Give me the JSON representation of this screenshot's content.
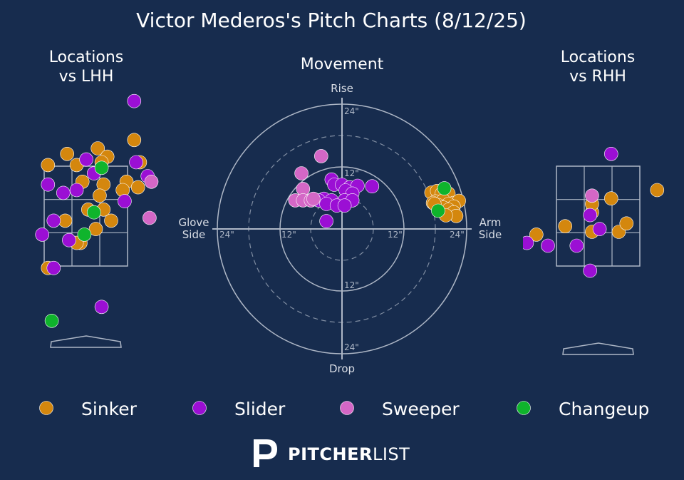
{
  "title": "Victor Mederos's Pitch Charts (8/12/25)",
  "colors": {
    "background": "#172c4e",
    "grid": "#aeb7c6",
    "sinker": "#d4870e",
    "slider": "#9b0fd4",
    "sweeper": "#d467c6",
    "changeup": "#0fb42c"
  },
  "panels": {
    "lhh_title_line1": "Locations",
    "lhh_title_line2": "vs LHH",
    "movement_title": "Movement",
    "rhh_title_line1": "Locations",
    "rhh_title_line2": "vs RHH"
  },
  "movement_axes": {
    "rise": "Rise",
    "drop": "Drop",
    "glove_line1": "Glove",
    "glove_line2": "Side",
    "arm_line1": "Arm",
    "arm_line2": "Side",
    "ring_12": "12\"",
    "ring_24": "24\""
  },
  "legend": [
    {
      "key": "sinker",
      "label": "Sinker"
    },
    {
      "key": "slider",
      "label": "Slider"
    },
    {
      "key": "sweeper",
      "label": "Sweeper"
    },
    {
      "key": "changeup",
      "label": "Changeup"
    }
  ],
  "brand": {
    "part1": "PITCHER",
    "part2": "LIST",
    "logo_icon": "pitcherlist-p-logo-icon"
  },
  "chart_data": [
    {
      "type": "scatter",
      "title": "Locations vs LHH",
      "xlabel": "",
      "ylabel": "",
      "units": "feet (x = horizontal plate location, y = height)",
      "xlim": [
        -2.3,
        1.9
      ],
      "ylim": [
        -0.4,
        4.6
      ],
      "series": [
        {
          "name": "Sinker",
          "points": [
            [
              -1.05,
              3.3
            ],
            [
              -0.55,
              3.5
            ],
            [
              -0.3,
              3.3
            ],
            [
              0.25,
              3.6
            ],
            [
              0.5,
              3.45
            ],
            [
              0.35,
              3.35
            ],
            [
              1.0,
              3.0
            ],
            [
              0.9,
              2.85
            ],
            [
              0.4,
              2.95
            ],
            [
              0.3,
              2.75
            ],
            [
              0.6,
              2.3
            ],
            [
              1.2,
              3.75
            ],
            [
              1.35,
              3.35
            ],
            [
              1.3,
              2.9
            ],
            [
              -0.15,
              3.0
            ],
            [
              0.0,
              2.5
            ],
            [
              0.4,
              2.5
            ],
            [
              -0.6,
              2.3
            ],
            [
              0.2,
              2.15
            ],
            [
              -1.05,
              1.45
            ],
            [
              -0.2,
              1.9
            ],
            [
              -0.3,
              1.9
            ]
          ]
        },
        {
          "name": "Slider",
          "points": [
            [
              -1.05,
              2.95
            ],
            [
              -0.65,
              2.8
            ],
            [
              -0.3,
              2.85
            ],
            [
              -0.05,
              3.4
            ],
            [
              0.15,
              3.15
            ],
            [
              0.95,
              2.65
            ],
            [
              1.25,
              3.35
            ],
            [
              1.55,
              3.1
            ],
            [
              1.2,
              4.45
            ],
            [
              -1.2,
              2.05
            ],
            [
              -0.9,
              2.3
            ],
            [
              -0.5,
              1.95
            ],
            [
              -0.9,
              1.45
            ],
            [
              0.35,
              0.75
            ]
          ]
        },
        {
          "name": "Sweeper",
          "points": [
            [
              1.6,
              2.35
            ],
            [
              1.65,
              3.0
            ]
          ]
        },
        {
          "name": "Changeup",
          "points": [
            [
              0.35,
              3.25
            ],
            [
              0.15,
              2.45
            ],
            [
              -0.1,
              2.05
            ],
            [
              -0.95,
              0.5
            ]
          ]
        }
      ]
    },
    {
      "type": "scatter",
      "title": "Movement",
      "xlabel": "Glove Side / Arm Side",
      "ylabel": "Drop / Rise",
      "units": "inches of break (x: negative = glove side, positive = arm side; y: negative = drop, positive = rise)",
      "xlim": [
        -24,
        24
      ],
      "ylim": [
        -24,
        24
      ],
      "series": [
        {
          "name": "Sinker",
          "points": [
            [
              17.2,
              7.0
            ],
            [
              18.3,
              7.3
            ],
            [
              19.2,
              6.8
            ],
            [
              20.5,
              6.8
            ],
            [
              21.5,
              5.0
            ],
            [
              22.5,
              5.4
            ],
            [
              18.0,
              5.3
            ],
            [
              19.5,
              5.5
            ],
            [
              20.5,
              4.8
            ],
            [
              21.5,
              4.3
            ],
            [
              17.5,
              5.0
            ],
            [
              18.5,
              4.6
            ],
            [
              19.5,
              4.1
            ],
            [
              20.5,
              3.7
            ],
            [
              21.5,
              3.2
            ],
            [
              22.0,
              2.5
            ],
            [
              20.0,
              2.6
            ],
            [
              17.8,
              4.8
            ]
          ]
        },
        {
          "name": "Slider",
          "points": [
            [
              -2.0,
              9.5
            ],
            [
              -1.5,
              8.5
            ],
            [
              0.0,
              8.5
            ],
            [
              1.5,
              8.0
            ],
            [
              3.0,
              8.3
            ],
            [
              5.8,
              8.2
            ],
            [
              0.7,
              7.4
            ],
            [
              2.0,
              6.8
            ],
            [
              -3.5,
              5.8
            ],
            [
              -2.0,
              5.5
            ],
            [
              0.5,
              5.5
            ],
            [
              2.0,
              5.5
            ],
            [
              -4.5,
              5.5
            ],
            [
              -3.0,
              4.8
            ],
            [
              -1.0,
              4.5
            ],
            [
              0.5,
              4.5
            ],
            [
              -3.0,
              1.5
            ]
          ]
        },
        {
          "name": "Sweeper",
          "points": [
            [
              -4.0,
              14.0
            ],
            [
              -7.8,
              10.7
            ],
            [
              -7.5,
              7.7
            ],
            [
              -9.0,
              5.5
            ],
            [
              -7.5,
              5.5
            ],
            [
              -6.0,
              5.5
            ],
            [
              -5.5,
              5.8
            ]
          ]
        },
        {
          "name": "Changeup",
          "points": [
            [
              19.7,
              7.8
            ],
            [
              18.5,
              3.5
            ]
          ]
        }
      ]
    },
    {
      "type": "scatter",
      "title": "Locations vs RHH",
      "xlabel": "",
      "ylabel": "",
      "units": "feet (x = horizontal plate location, y = height)",
      "xlim": [
        -1.7,
        2.5
      ],
      "ylim": [
        -0.4,
        4.6
      ],
      "series": [
        {
          "name": "Sinker",
          "points": [
            [
              -0.6,
              2.2
            ],
            [
              0.1,
              2.45
            ],
            [
              0.6,
              2.7
            ],
            [
              0.1,
              2.6
            ],
            [
              0.1,
              2.1
            ],
            [
              0.8,
              2.1
            ],
            [
              1.0,
              2.25
            ],
            [
              1.8,
              2.85
            ],
            [
              -1.35,
              2.05
            ]
          ]
        },
        {
          "name": "Slider",
          "points": [
            [
              -1.6,
              1.9
            ],
            [
              -1.05,
              1.85
            ],
            [
              -0.3,
              1.85
            ],
            [
              0.3,
              2.15
            ],
            [
              0.05,
              1.4
            ],
            [
              0.6,
              3.5
            ],
            [
              0.05,
              2.4
            ]
          ]
        },
        {
          "name": "Sweeper",
          "points": [
            [
              0.1,
              2.75
            ]
          ]
        },
        {
          "name": "Changeup",
          "points": []
        }
      ]
    }
  ]
}
